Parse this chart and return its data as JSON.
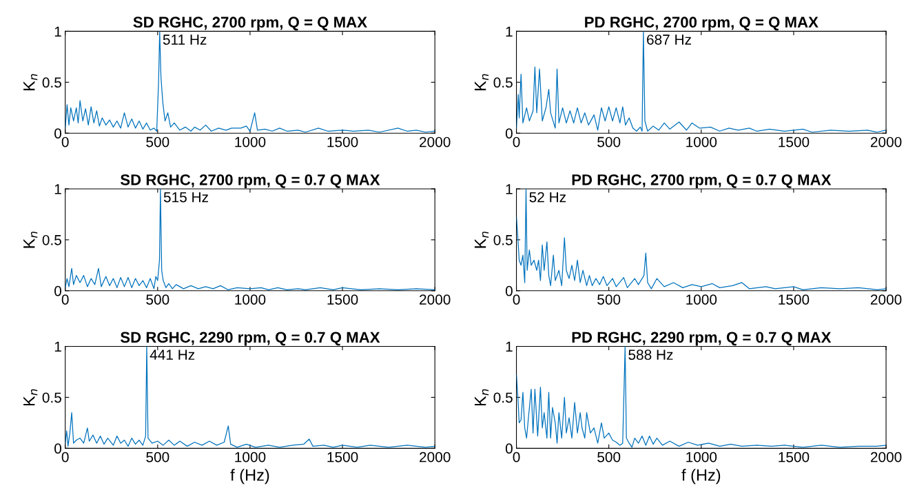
{
  "chart_data": [
    {
      "type": "line",
      "title": "SD RGHC, 2700 rpm, Q = Q MAX",
      "ylabel": "K$_{n}$",
      "xlim": [
        0,
        2000
      ],
      "ylim": [
        0,
        1
      ],
      "xticks": [
        0,
        500,
        1000,
        1500,
        2000
      ],
      "yticks": [
        0,
        0.5,
        1
      ],
      "grid": false,
      "annotations": [
        {
          "text": "511 Hz",
          "x": 511,
          "y": 1
        }
      ],
      "x": [
        0,
        10,
        20,
        30,
        45,
        60,
        70,
        80,
        95,
        110,
        125,
        140,
        155,
        170,
        185,
        200,
        220,
        240,
        260,
        280,
        300,
        320,
        340,
        360,
        380,
        400,
        420,
        440,
        460,
        480,
        495,
        505,
        511,
        518,
        528,
        540,
        555,
        570,
        590,
        620,
        650,
        680,
        700,
        730,
        760,
        790,
        830,
        870,
        900,
        950,
        980,
        1000,
        1025,
        1040,
        1080,
        1120,
        1160,
        1200,
        1260,
        1300,
        1370,
        1420,
        1500,
        1560,
        1640,
        1700,
        1800,
        1850,
        1900,
        1950,
        2000
      ],
      "series": [
        {
          "color": "#0072bd",
          "values": [
            0.05,
            0.28,
            0.08,
            0.25,
            0.12,
            0.25,
            0.1,
            0.32,
            0.12,
            0.24,
            0.08,
            0.26,
            0.1,
            0.22,
            0.07,
            0.15,
            0.08,
            0.13,
            0.06,
            0.12,
            0.05,
            0.2,
            0.06,
            0.14,
            0.05,
            0.12,
            0.04,
            0.1,
            0.03,
            0.05,
            0.02,
            0.5,
            1.0,
            0.55,
            0.3,
            0.12,
            0.2,
            0.06,
            0.1,
            0.03,
            0.06,
            0.02,
            0.06,
            0.03,
            0.08,
            0.02,
            0.05,
            0.03,
            0.05,
            0.05,
            0.07,
            0.02,
            0.2,
            0.03,
            0.04,
            0.02,
            0.05,
            0.02,
            0.03,
            0.01,
            0.05,
            0.02,
            0.03,
            0.02,
            0.03,
            0.01,
            0.05,
            0.02,
            0.03,
            0.01,
            0.02
          ]
        }
      ]
    },
    {
      "type": "line",
      "title": "PD RGHC, 2700 rpm, Q = Q MAX",
      "ylabel": "K$_{n}$",
      "xlim": [
        0,
        2000
      ],
      "ylim": [
        0,
        1
      ],
      "xticks": [
        0,
        500,
        1000,
        1500,
        2000
      ],
      "yticks": [
        0,
        0.5,
        1
      ],
      "grid": false,
      "annotations": [
        {
          "text": "687 Hz",
          "x": 687,
          "y": 1
        }
      ],
      "x": [
        0,
        10,
        15,
        25,
        35,
        55,
        70,
        90,
        100,
        110,
        125,
        140,
        160,
        175,
        185,
        210,
        220,
        230,
        250,
        270,
        290,
        310,
        330,
        350,
        370,
        390,
        420,
        440,
        460,
        480,
        500,
        520,
        540,
        560,
        575,
        590,
        610,
        630,
        650,
        670,
        680,
        687,
        695,
        710,
        740,
        770,
        800,
        830,
        880,
        920,
        950,
        990,
        1050,
        1100,
        1150,
        1200,
        1260,
        1300,
        1370,
        1450,
        1550,
        1600,
        1700,
        1800,
        1900,
        1950,
        2000
      ],
      "series": [
        {
          "color": "#0072bd",
          "values": [
            0.05,
            0.38,
            0.15,
            0.58,
            0.1,
            0.25,
            0.12,
            0.22,
            0.65,
            0.2,
            0.63,
            0.12,
            0.25,
            0.43,
            0.2,
            0.05,
            0.63,
            0.1,
            0.25,
            0.1,
            0.22,
            0.1,
            0.25,
            0.1,
            0.2,
            0.08,
            0.18,
            0.03,
            0.25,
            0.12,
            0.26,
            0.12,
            0.25,
            0.1,
            0.26,
            0.08,
            0.15,
            0.05,
            0.02,
            0.06,
            0.02,
            1.0,
            0.12,
            0.02,
            0.07,
            0.03,
            0.1,
            0.04,
            0.11,
            0.03,
            0.1,
            0.05,
            0.06,
            0.02,
            0.05,
            0.03,
            0.05,
            0.02,
            0.04,
            0.02,
            0.04,
            0.01,
            0.03,
            0.02,
            0.03,
            0.01,
            0.03
          ]
        }
      ]
    },
    {
      "type": "line",
      "title": "SD RGHC, 2700 rpm, Q = 0.7 Q MAX",
      "ylabel": "K$_{n}$",
      "xlim": [
        0,
        2000
      ],
      "ylim": [
        0,
        1
      ],
      "xticks": [
        0,
        500,
        1000,
        1500,
        2000
      ],
      "yticks": [
        0,
        0.5,
        1
      ],
      "grid": false,
      "annotations": [
        {
          "text": "515 Hz",
          "x": 515,
          "y": 1
        }
      ],
      "x": [
        0,
        10,
        20,
        35,
        45,
        60,
        80,
        100,
        120,
        140,
        160,
        180,
        195,
        220,
        240,
        260,
        280,
        300,
        320,
        340,
        360,
        380,
        400,
        420,
        440,
        460,
        480,
        490,
        500,
        510,
        515,
        522,
        530,
        545,
        560,
        580,
        600,
        640,
        680,
        720,
        760,
        800,
        840,
        880,
        930,
        1000,
        1060,
        1100,
        1150,
        1200,
        1260,
        1300,
        1380,
        1450,
        1500,
        1600,
        1700,
        1800,
        1900,
        2000
      ],
      "series": [
        {
          "color": "#0072bd",
          "values": [
            0.03,
            0.12,
            0.04,
            0.22,
            0.06,
            0.15,
            0.08,
            0.15,
            0.04,
            0.12,
            0.06,
            0.22,
            0.04,
            0.14,
            0.05,
            0.12,
            0.03,
            0.13,
            0.04,
            0.13,
            0.03,
            0.12,
            0.05,
            0.1,
            0.03,
            0.12,
            0.02,
            0.14,
            0.1,
            0.3,
            1.0,
            0.2,
            0.1,
            0.03,
            0.07,
            0.02,
            0.06,
            0.02,
            0.05,
            0.02,
            0.04,
            0.02,
            0.05,
            0.01,
            0.03,
            0.02,
            0.03,
            0.01,
            0.03,
            0.01,
            0.02,
            0.01,
            0.03,
            0.01,
            0.03,
            0.01,
            0.02,
            0.01,
            0.02,
            0.01
          ]
        }
      ]
    },
    {
      "type": "line",
      "title": "PD RGHC, 2700 rpm, Q = 0.7 Q MAX",
      "ylabel": "K$_{n}$",
      "xlim": [
        0,
        2000
      ],
      "ylim": [
        0,
        1
      ],
      "xticks": [
        0,
        500,
        1000,
        1500,
        2000
      ],
      "yticks": [
        0,
        0.5,
        1
      ],
      "grid": false,
      "annotations": [
        {
          "text": "52 Hz",
          "x": 52,
          "y": 1
        }
      ],
      "x": [
        0,
        5,
        15,
        25,
        35,
        45,
        52,
        58,
        70,
        80,
        95,
        110,
        120,
        130,
        140,
        150,
        165,
        175,
        185,
        200,
        210,
        230,
        245,
        260,
        270,
        285,
        300,
        315,
        330,
        345,
        360,
        380,
        395,
        410,
        430,
        450,
        470,
        490,
        520,
        540,
        580,
        600,
        640,
        660,
        690,
        700,
        710,
        730,
        760,
        800,
        850,
        900,
        950,
        1000,
        1060,
        1100,
        1170,
        1220,
        1260,
        1350,
        1400,
        1500,
        1550,
        1650,
        1750,
        1850,
        1950,
        2000
      ],
      "series": [
        {
          "color": "#0072bd",
          "values": [
            0.72,
            0.6,
            0.3,
            0.25,
            0.35,
            0.08,
            1.0,
            0.2,
            0.4,
            0.25,
            0.3,
            0.2,
            0.3,
            0.1,
            0.45,
            0.2,
            0.48,
            0.15,
            0.05,
            0.35,
            0.1,
            0.2,
            0.05,
            0.52,
            0.2,
            0.12,
            0.25,
            0.1,
            0.3,
            0.08,
            0.2,
            0.05,
            0.15,
            0.05,
            0.12,
            0.06,
            0.14,
            0.05,
            0.12,
            0.04,
            0.13,
            0.03,
            0.12,
            0.06,
            0.15,
            0.37,
            0.08,
            0.02,
            0.12,
            0.04,
            0.08,
            0.03,
            0.06,
            0.04,
            0.07,
            0.03,
            0.05,
            0.08,
            0.02,
            0.04,
            0.02,
            0.04,
            0.01,
            0.03,
            0.02,
            0.03,
            0.01,
            0.02
          ]
        }
      ]
    },
    {
      "type": "line",
      "title": "SD RGHC, 2290 rpm, Q = 0.7 Q MAX",
      "ylabel": "K$_{n}$",
      "xlabel": "f (Hz)",
      "xlim": [
        0,
        2000
      ],
      "ylim": [
        0,
        1
      ],
      "xticks": [
        0,
        500,
        1000,
        1500,
        2000
      ],
      "yticks": [
        0,
        0.5,
        1
      ],
      "grid": false,
      "annotations": [
        {
          "text": "441 Hz",
          "x": 441,
          "y": 1
        }
      ],
      "x": [
        0,
        8,
        15,
        25,
        35,
        45,
        60,
        80,
        100,
        120,
        130,
        150,
        170,
        190,
        210,
        230,
        260,
        280,
        300,
        320,
        340,
        360,
        380,
        400,
        420,
        435,
        441,
        448,
        470,
        500,
        530,
        560,
        590,
        620,
        660,
        700,
        740,
        780,
        820,
        860,
        882,
        895,
        930,
        980,
        1030,
        1100,
        1160,
        1230,
        1290,
        1320,
        1340,
        1400,
        1450,
        1500,
        1580,
        1650,
        1750,
        1850,
        1950,
        2000
      ],
      "series": [
        {
          "color": "#0072bd",
          "values": [
            0.05,
            0.17,
            0.02,
            0.15,
            0.35,
            0.05,
            0.08,
            0.1,
            0.05,
            0.2,
            0.07,
            0.13,
            0.05,
            0.12,
            0.04,
            0.1,
            0.03,
            0.12,
            0.05,
            0.08,
            0.02,
            0.1,
            0.04,
            0.08,
            0.03,
            0.12,
            1.0,
            0.1,
            0.05,
            0.07,
            0.03,
            0.08,
            0.03,
            0.07,
            0.02,
            0.06,
            0.03,
            0.07,
            0.03,
            0.06,
            0.22,
            0.04,
            0.01,
            0.04,
            0.01,
            0.03,
            0.01,
            0.03,
            0.04,
            0.09,
            0.02,
            0.03,
            0.01,
            0.03,
            0.01,
            0.03,
            0.01,
            0.03,
            0.01,
            0.02
          ]
        }
      ]
    },
    {
      "type": "line",
      "title": "PD RGHC, 2290 rpm, Q = 0.7 Q MAX",
      "ylabel": "K$_{n}$",
      "xlabel": "f (Hz)",
      "xlim": [
        0,
        2000
      ],
      "ylim": [
        0,
        1
      ],
      "xticks": [
        0,
        500,
        1000,
        1500,
        2000
      ],
      "yticks": [
        0,
        0.5,
        1
      ],
      "grid": false,
      "annotations": [
        {
          "text": "588 Hz",
          "x": 588,
          "y": 1
        }
      ],
      "x": [
        0,
        8,
        15,
        25,
        35,
        45,
        55,
        65,
        80,
        90,
        100,
        115,
        130,
        140,
        150,
        165,
        175,
        185,
        195,
        210,
        220,
        230,
        245,
        260,
        270,
        285,
        300,
        315,
        330,
        345,
        355,
        370,
        380,
        400,
        420,
        440,
        460,
        475,
        500,
        520,
        540,
        560,
        575,
        588,
        595,
        610,
        625,
        640,
        660,
        680,
        700,
        720,
        740,
        760,
        790,
        830,
        880,
        930,
        980,
        1040,
        1100,
        1160,
        1220,
        1300,
        1380,
        1450,
        1550,
        1650,
        1750,
        1850,
        1950,
        2000
      ],
      "series": [
        {
          "color": "#0072bd",
          "values": [
            0.72,
            0.5,
            0.25,
            0.28,
            0.55,
            0.2,
            0.1,
            0.3,
            0.58,
            0.15,
            0.58,
            0.12,
            0.6,
            0.2,
            0.35,
            0.1,
            0.55,
            0.1,
            0.4,
            0.25,
            0.05,
            0.35,
            0.1,
            0.5,
            0.15,
            0.3,
            0.1,
            0.45,
            0.15,
            0.35,
            0.2,
            0.1,
            0.35,
            0.15,
            0.2,
            0.05,
            0.25,
            0.1,
            0.15,
            0.08,
            0.06,
            0.03,
            0.05,
            1.0,
            0.1,
            0.05,
            0.01,
            0.1,
            0.05,
            0.12,
            0.03,
            0.12,
            0.04,
            0.1,
            0.03,
            0.07,
            0.02,
            0.06,
            0.03,
            0.05,
            0.02,
            0.04,
            0.02,
            0.03,
            0.02,
            0.03,
            0.01,
            0.03,
            0.01,
            0.02,
            0.02,
            0.03
          ]
        }
      ]
    }
  ]
}
